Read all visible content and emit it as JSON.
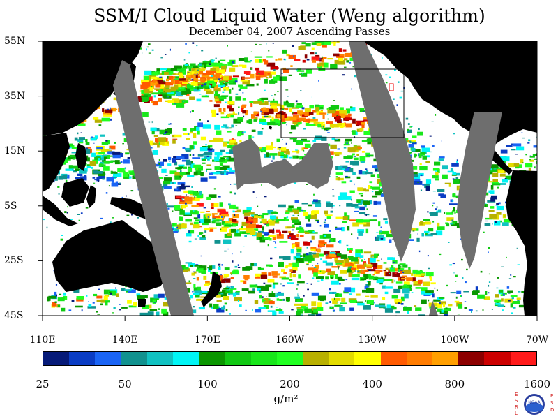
{
  "title": "SSM/I Cloud Liquid Water (Weng algorithm)",
  "subtitle": "December 04, 2007  Ascending Passes",
  "lat_labels": [
    "55N",
    "35N",
    "15N",
    "5S",
    "25S",
    "45S"
  ],
  "lon_labels": [
    "110E",
    "140E",
    "170E",
    "160W",
    "130W",
    "100W",
    "70W"
  ],
  "colorbar": {
    "colors": [
      "#061a78",
      "#0a3cc4",
      "#1a64f5",
      "#11928f",
      "#10c2c2",
      "#00f5f5",
      "#0a9600",
      "#10c812",
      "#18e61a",
      "#20ff20",
      "#b8b000",
      "#e3dc00",
      "#ffff00",
      "#ff5a00",
      "#ff7c00",
      "#ff9f00",
      "#8c0000",
      "#cc0000",
      "#ff1a1a"
    ],
    "labels": [
      "25",
      "50",
      "100",
      "200",
      "400",
      "800",
      "1600"
    ],
    "units": "g/m²"
  },
  "logo": {
    "left_letters": "ESRL",
    "right_letters": "PSD",
    "center": "NOAA"
  },
  "colors": {
    "land": "#000000",
    "no_data": "#6e6e6e",
    "ocean_clear": "#ffffff",
    "box_outline": "#000000"
  }
}
